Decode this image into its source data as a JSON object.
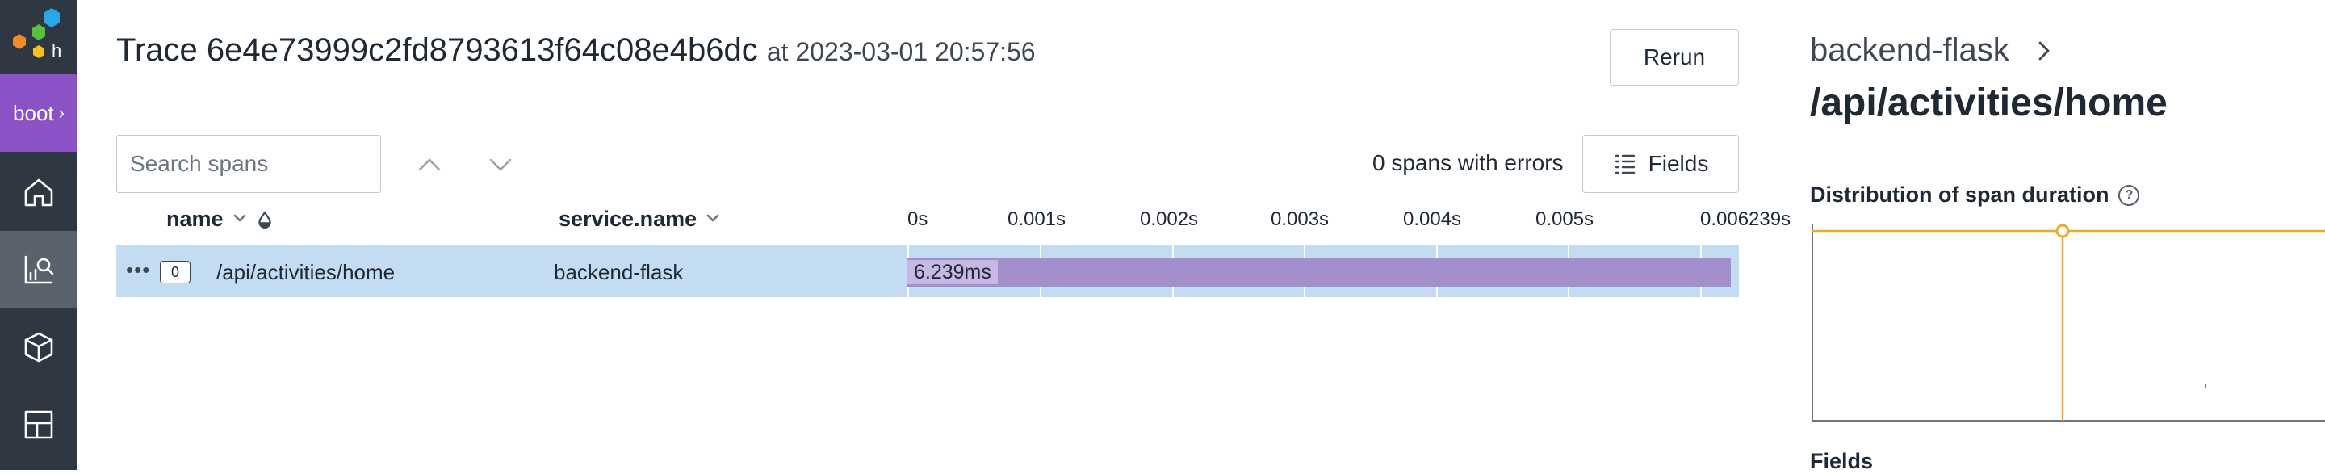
{
  "sidebar": {
    "environment_label": "boot",
    "items": [
      {
        "name": "home",
        "icon": "home-icon"
      },
      {
        "name": "query",
        "icon": "query-icon",
        "active": true
      },
      {
        "name": "datasets",
        "icon": "cube-icon"
      },
      {
        "name": "boards",
        "icon": "boards-icon"
      }
    ]
  },
  "header": {
    "title": "Trace 6e4e73999c2fd8793613f64c08e4b6dc",
    "timestamp": "at 2023-03-01 20:57:56",
    "rerun_label": "Rerun"
  },
  "toolbar": {
    "search_placeholder": "Search spans",
    "errors_text": "0 spans with errors",
    "fields_label": "Fields"
  },
  "table": {
    "columns": {
      "name": "name",
      "service": "service.name"
    },
    "ticks": [
      "0s",
      "0.001s",
      "0.002s",
      "0.003s",
      "0.004s",
      "0.005s",
      "0.006239s"
    ],
    "rows": [
      {
        "child_count": "0",
        "name": "/api/activities/home",
        "service": "backend-flask",
        "duration_label": "6.239ms",
        "duration_ms": 6.239
      }
    ]
  },
  "detail_panel": {
    "service": "backend-flask",
    "operation": "/api/activities/home",
    "distribution_label": "Distribution of span duration",
    "help_glyph": "?",
    "fields_label": "Fields"
  },
  "colors": {
    "rail": "#2f3743",
    "env_accent": "#8b52c6",
    "row_selected": "#c4dcf2",
    "bar": "#a48fcd",
    "distribution_line": "#f0a92a"
  }
}
